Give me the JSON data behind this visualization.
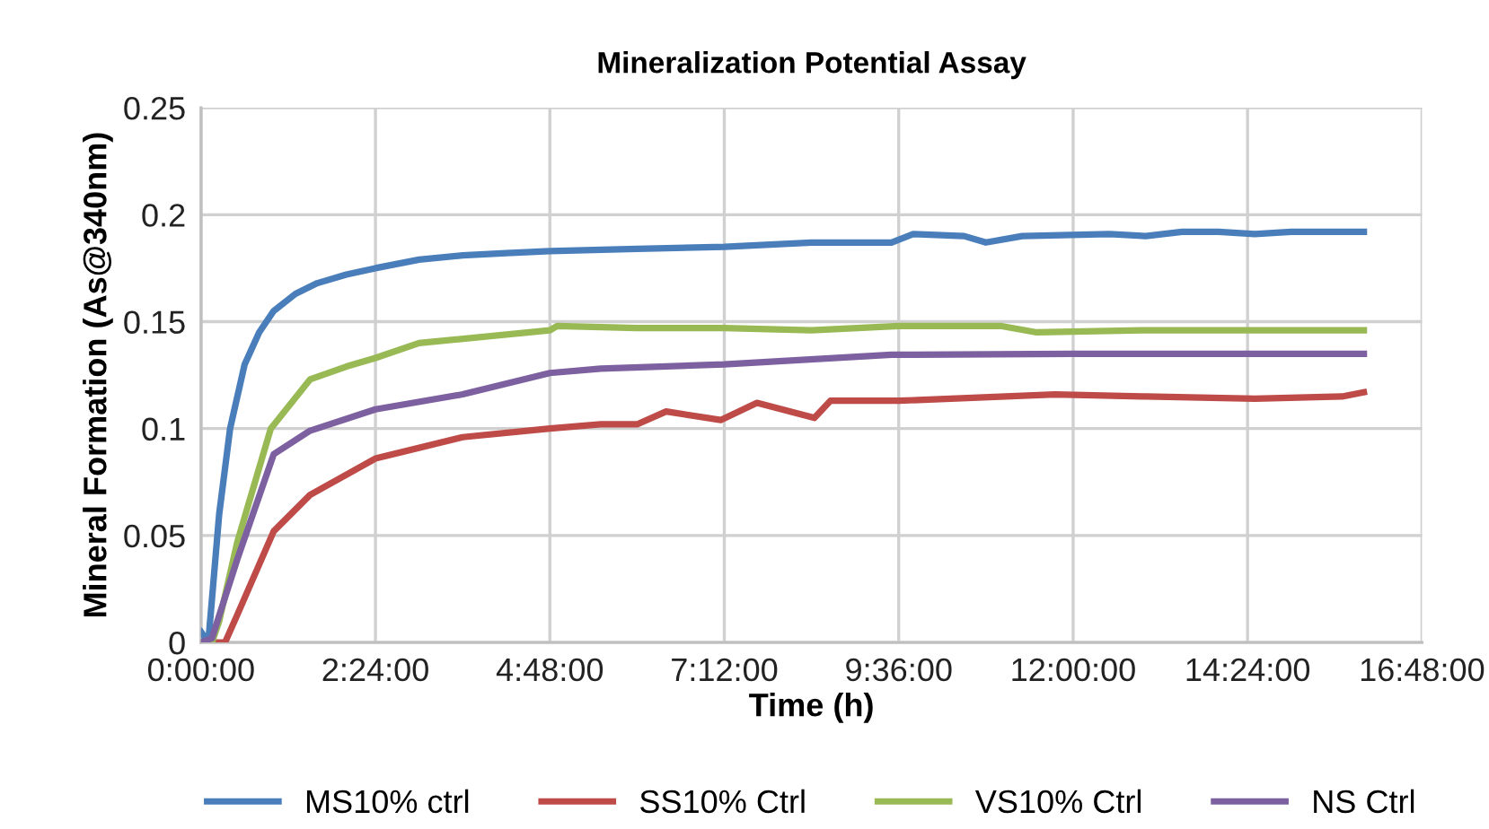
{
  "chart_data": {
    "type": "line",
    "title": "Mineralization Potential Assay",
    "xlabel": "Time (h)",
    "ylabel": "Mineral Formation (As@340nm)",
    "xlim": [
      0,
      16.8
    ],
    "xticks": [
      {
        "value": 0,
        "label": "0:00:00"
      },
      {
        "value": 2.4,
        "label": "2:24:00"
      },
      {
        "value": 4.8,
        "label": "4:48:00"
      },
      {
        "value": 7.2,
        "label": "7:12:00"
      },
      {
        "value": 9.6,
        "label": "9:36:00"
      },
      {
        "value": 12,
        "label": "12:00:00"
      },
      {
        "value": 14.4,
        "label": "14:24:00"
      },
      {
        "value": 16.8,
        "label": "16:48:00"
      }
    ],
    "ylim": [
      0,
      0.25
    ],
    "yticks": [
      0,
      0.05,
      0.1,
      0.15,
      0.2,
      0.25
    ],
    "grid": true,
    "legend": "bottom",
    "marker": "none",
    "line_style": "solid",
    "series": [
      {
        "name": "MS10% ctrl",
        "color": "#4a7ebb",
        "x": [
          0,
          0.1,
          0.25,
          0.4,
          0.6,
          0.8,
          1.0,
          1.3,
          1.6,
          2.0,
          2.4,
          3.0,
          3.6,
          4.2,
          4.8,
          6.0,
          7.2,
          8.4,
          9.5,
          9.8,
          10.5,
          10.8,
          11.3,
          12.5,
          13.0,
          13.5,
          14.0,
          14.5,
          15.0,
          16.0
        ],
        "values": [
          0.005,
          0.0,
          0.06,
          0.1,
          0.13,
          0.145,
          0.155,
          0.163,
          0.168,
          0.172,
          0.175,
          0.179,
          0.181,
          0.182,
          0.183,
          0.184,
          0.185,
          0.187,
          0.187,
          0.191,
          0.19,
          0.187,
          0.19,
          0.191,
          0.19,
          0.192,
          0.192,
          0.191,
          0.192,
          0.192
        ]
      },
      {
        "name": "SS10% Ctrl",
        "color": "#be4b48",
        "x": [
          0,
          0.33,
          0.5,
          1.0,
          1.5,
          2.4,
          3.6,
          4.8,
          5.5,
          6.0,
          6.4,
          7.15,
          7.65,
          8.44,
          8.66,
          9.6,
          11.75,
          13.0,
          14.5,
          15.7,
          16.0
        ],
        "values": [
          0.0,
          0.0,
          0.013,
          0.052,
          0.069,
          0.086,
          0.096,
          0.1,
          0.102,
          0.102,
          0.108,
          0.104,
          0.112,
          0.105,
          0.113,
          0.113,
          0.116,
          0.115,
          0.114,
          0.115,
          0.117
        ]
      },
      {
        "name": "VS10% Ctrl",
        "color": "#98b954",
        "x": [
          0,
          0.15,
          0.25,
          0.5,
          0.96,
          1.5,
          2.0,
          2.4,
          3.0,
          4.8,
          4.9,
          6.0,
          7.2,
          8.4,
          9.6,
          10.5,
          11.0,
          11.5,
          13.0,
          16.0
        ],
        "values": [
          0.0,
          0.0,
          0.01,
          0.047,
          0.1,
          0.123,
          0.129,
          0.133,
          0.14,
          0.146,
          0.148,
          0.147,
          0.147,
          0.146,
          0.148,
          0.148,
          0.148,
          0.145,
          0.146,
          0.146
        ]
      },
      {
        "name": "NS Ctrl",
        "color": "#7d60a0",
        "x": [
          0,
          0.15,
          0.5,
          1.0,
          1.5,
          2.4,
          3.6,
          4.8,
          5.5,
          7.2,
          9.5,
          12.0,
          16.0
        ],
        "values": [
          0.0,
          0.002,
          0.039,
          0.088,
          0.099,
          0.109,
          0.116,
          0.126,
          0.128,
          0.13,
          0.1345,
          0.135,
          0.135
        ]
      }
    ]
  }
}
